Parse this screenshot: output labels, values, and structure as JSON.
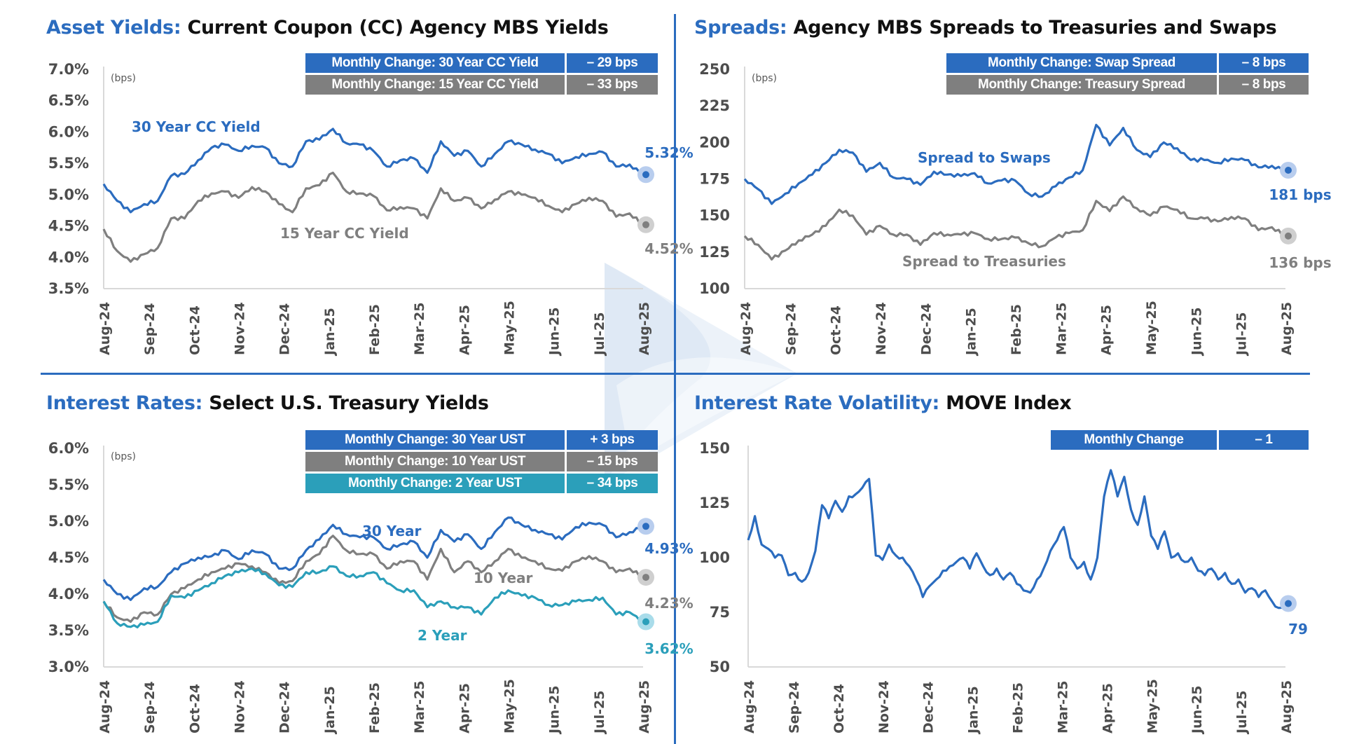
{
  "colors": {
    "accent_blue": "#2b6cbf",
    "gray": "#7f7f7f",
    "teal": "#2b9fba",
    "axis_text": "#4d4d4d",
    "axis_line": "#d9d9d9",
    "watermark": "#c9d9ef"
  },
  "panels": {
    "asset_yields": {
      "title_accent": "Asset Yields:",
      "title_rest": "Current Coupon (CC) Agency MBS Yields",
      "changes": [
        {
          "label": "Monthly Change: 30 Year CC Yield",
          "value": "– 29 bps",
          "color": "blue"
        },
        {
          "label": "Monthly Change: 15 Year CC Yield",
          "value": "– 33 bps",
          "color": "gray"
        }
      ]
    },
    "spreads": {
      "title_accent": "Spreads:",
      "title_rest": "Agency MBS Spreads to Treasuries and Swaps",
      "changes": [
        {
          "label": "Monthly Change: Swap Spread",
          "value": "– 8 bps",
          "color": "blue"
        },
        {
          "label": "Monthly Change: Treasury Spread",
          "value": "– 8 bps",
          "color": "gray"
        }
      ]
    },
    "interest_rates": {
      "title_accent": "Interest Rates:",
      "title_rest": "Select U.S. Treasury Yields",
      "changes": [
        {
          "label": "Monthly Change: 30 Year UST",
          "value": "+ 3 bps",
          "color": "blue"
        },
        {
          "label": "Monthly Change: 10 Year UST",
          "value": "– 15 bps",
          "color": "gray"
        },
        {
          "label": "Monthly Change: 2 Year UST",
          "value": "– 34 bps",
          "color": "teal"
        }
      ]
    },
    "volatility": {
      "title_accent": "Interest Rate Volatility:",
      "title_rest": "MOVE Index",
      "changes": [
        {
          "label": "Monthly Change",
          "value": "– 1",
          "color": "blue"
        }
      ]
    }
  },
  "chart_data": [
    {
      "id": "asset_yields",
      "type": "line",
      "title": "Asset Yields: Current Coupon (CC) Agency MBS Yields",
      "unit_label": "(bps)",
      "ylim": [
        3.5,
        7.0
      ],
      "yticks": [
        3.5,
        4.0,
        4.5,
        5.0,
        5.5,
        6.0,
        6.5,
        7.0
      ],
      "ytick_format": "pct1",
      "x_ticks": [
        "Aug-24",
        "Sep-24",
        "Oct-24",
        "Nov-24",
        "Dec-24",
        "Jan-25",
        "Feb-25",
        "Mar-25",
        "Apr-25",
        "May-25",
        "Jun-25",
        "Jul-25",
        "Aug-25"
      ],
      "x": [
        0,
        0.3,
        0.6,
        0.9,
        1.2,
        1.5,
        1.8,
        2.1,
        2.4,
        2.7,
        3.0,
        3.3,
        3.6,
        3.9,
        4.2,
        4.5,
        4.8,
        5.1,
        5.4,
        5.7,
        6.0,
        6.3,
        6.6,
        6.9,
        7.2,
        7.5,
        7.8,
        8.1,
        8.4,
        8.7,
        9.0,
        9.3,
        9.6,
        9.9,
        10.2,
        10.5,
        10.8,
        11.1,
        11.4,
        11.7,
        12.0
      ],
      "series": [
        {
          "name": "30 Year CC Yield",
          "color": "blue",
          "end_label": "5.32%",
          "values": [
            5.17,
            4.9,
            4.72,
            4.85,
            4.9,
            5.3,
            5.33,
            5.55,
            5.75,
            5.8,
            5.7,
            5.78,
            5.75,
            5.5,
            5.45,
            5.85,
            5.88,
            6.05,
            5.82,
            5.8,
            5.7,
            5.45,
            5.55,
            5.58,
            5.35,
            5.85,
            5.62,
            5.7,
            5.45,
            5.65,
            5.85,
            5.8,
            5.72,
            5.65,
            5.5,
            5.6,
            5.65,
            5.68,
            5.45,
            5.48,
            5.32
          ]
        },
        {
          "name": "15 Year CC Yield",
          "color": "gray",
          "end_label": "4.52%",
          "values": [
            4.45,
            4.1,
            3.93,
            4.05,
            4.15,
            4.62,
            4.62,
            4.9,
            5.02,
            5.05,
            4.95,
            5.12,
            5.05,
            4.85,
            4.72,
            5.1,
            5.15,
            5.35,
            5.05,
            5.02,
            4.98,
            4.75,
            4.8,
            4.78,
            4.62,
            5.1,
            4.9,
            4.95,
            4.78,
            4.92,
            5.05,
            5.0,
            4.95,
            4.82,
            4.72,
            4.85,
            4.95,
            4.9,
            4.65,
            4.7,
            4.52
          ]
        }
      ]
    },
    {
      "id": "spreads",
      "type": "line",
      "title": "Spreads: Agency MBS Spreads to Treasuries and Swaps",
      "unit_label": "(bps)",
      "ylim": [
        100,
        250
      ],
      "yticks": [
        100,
        125,
        150,
        175,
        200,
        225,
        250
      ],
      "ytick_format": "int",
      "x_ticks": [
        "Aug-24",
        "Sep-24",
        "Oct-24",
        "Nov-24",
        "Dec-24",
        "Jan-25",
        "Feb-25",
        "Mar-25",
        "Apr-25",
        "May-25",
        "Jun-25",
        "Jul-25",
        "Aug-25"
      ],
      "x": [
        0,
        0.3,
        0.6,
        0.9,
        1.2,
        1.5,
        1.8,
        2.1,
        2.4,
        2.7,
        3.0,
        3.3,
        3.6,
        3.9,
        4.2,
        4.5,
        4.8,
        5.1,
        5.4,
        5.7,
        6.0,
        6.3,
        6.6,
        6.9,
        7.2,
        7.5,
        7.8,
        8.1,
        8.4,
        8.7,
        9.0,
        9.3,
        9.6,
        9.9,
        10.2,
        10.5,
        10.8,
        11.1,
        11.4,
        11.7,
        12.0
      ],
      "series": [
        {
          "name": "Spread to Swaps",
          "color": "blue",
          "end_label": "181 bps",
          "values": [
            175,
            168,
            158,
            165,
            172,
            178,
            186,
            195,
            193,
            180,
            186,
            176,
            175,
            171,
            180,
            178,
            177,
            179,
            172,
            174,
            174,
            165,
            163,
            170,
            176,
            181,
            212,
            198,
            210,
            195,
            190,
            200,
            196,
            188,
            188,
            186,
            189,
            188,
            183,
            184,
            181
          ]
        },
        {
          "name": "Spread to Treasuries",
          "color": "gray",
          "end_label": "136 bps",
          "values": [
            136,
            130,
            120,
            126,
            133,
            137,
            143,
            154,
            150,
            137,
            143,
            137,
            137,
            130,
            138,
            137,
            137,
            138,
            134,
            134,
            135,
            131,
            129,
            135,
            138,
            140,
            160,
            153,
            163,
            155,
            150,
            156,
            154,
            148,
            148,
            146,
            149,
            148,
            140,
            142,
            136
          ]
        }
      ]
    },
    {
      "id": "interest_rates",
      "type": "line",
      "title": "Interest Rates: Select U.S. Treasury Yields",
      "unit_label": "(bps)",
      "ylim": [
        3.0,
        6.0
      ],
      "yticks": [
        3.0,
        3.5,
        4.0,
        4.5,
        5.0,
        5.5,
        6.0
      ],
      "ytick_format": "pct1",
      "x_ticks": [
        "Aug-24",
        "Sep-24",
        "Oct-24",
        "Nov-24",
        "Dec-24",
        "Jan-25",
        "Feb-25",
        "Mar-25",
        "Apr-25",
        "May-25",
        "Jun-25",
        "Jul-25",
        "Aug-25"
      ],
      "x": [
        0,
        0.3,
        0.6,
        0.9,
        1.2,
        1.5,
        1.8,
        2.1,
        2.4,
        2.7,
        3.0,
        3.3,
        3.6,
        3.9,
        4.2,
        4.5,
        4.8,
        5.1,
        5.4,
        5.7,
        6.0,
        6.3,
        6.6,
        6.9,
        7.2,
        7.5,
        7.8,
        8.1,
        8.4,
        8.7,
        9.0,
        9.3,
        9.6,
        9.9,
        10.2,
        10.5,
        10.8,
        11.1,
        11.4,
        11.7,
        12.0
      ],
      "series": [
        {
          "name": "30 Year",
          "color": "blue",
          "end_label": "4.93%",
          "values": [
            4.2,
            4.0,
            3.92,
            4.08,
            4.1,
            4.3,
            4.42,
            4.5,
            4.52,
            4.6,
            4.48,
            4.6,
            4.55,
            4.35,
            4.35,
            4.6,
            4.75,
            4.95,
            4.82,
            4.78,
            4.78,
            4.62,
            4.68,
            4.72,
            4.5,
            4.88,
            4.72,
            4.82,
            4.62,
            4.85,
            5.05,
            4.95,
            4.88,
            4.82,
            4.75,
            4.92,
            4.98,
            4.95,
            4.78,
            4.85,
            4.93
          ]
        },
        {
          "name": "10 Year",
          "color": "gray",
          "end_label": "4.23%",
          "values": [
            3.9,
            3.68,
            3.62,
            3.75,
            3.72,
            4.0,
            4.08,
            4.2,
            4.3,
            4.35,
            4.42,
            4.38,
            4.3,
            4.15,
            4.18,
            4.45,
            4.55,
            4.8,
            4.6,
            4.55,
            4.55,
            4.35,
            4.45,
            4.45,
            4.2,
            4.62,
            4.3,
            4.45,
            4.3,
            4.45,
            4.62,
            4.5,
            4.45,
            4.35,
            4.32,
            4.45,
            4.52,
            4.45,
            4.3,
            4.35,
            4.23
          ]
        },
        {
          "name": "2 Year",
          "color": "teal",
          "end_label": "3.62%",
          "values": [
            3.9,
            3.6,
            3.55,
            3.58,
            3.62,
            3.98,
            3.95,
            4.05,
            4.15,
            4.25,
            4.3,
            4.35,
            4.28,
            4.12,
            4.1,
            4.3,
            4.3,
            4.38,
            4.25,
            4.25,
            4.3,
            4.15,
            4.05,
            4.05,
            3.82,
            3.9,
            3.82,
            3.82,
            3.72,
            3.95,
            4.05,
            3.98,
            3.95,
            3.85,
            3.85,
            3.9,
            3.92,
            3.95,
            3.72,
            3.75,
            3.62
          ]
        }
      ]
    },
    {
      "id": "volatility",
      "type": "line",
      "title": "Interest Rate Volatility: MOVE Index",
      "unit_label": "",
      "ylim": [
        50,
        150
      ],
      "yticks": [
        50,
        75,
        100,
        125,
        150
      ],
      "ytick_format": "int",
      "x_ticks": [
        "Aug-24",
        "Sep-24",
        "Oct-24",
        "Nov-24",
        "Dec-24",
        "Jan-25",
        "Feb-25",
        "Mar-25",
        "Apr-25",
        "May-25",
        "Jun-25",
        "Jul-25",
        "Aug-25"
      ],
      "x": [
        0,
        0.15,
        0.3,
        0.45,
        0.6,
        0.75,
        0.9,
        1.05,
        1.2,
        1.35,
        1.5,
        1.65,
        1.8,
        1.95,
        2.1,
        2.25,
        2.4,
        2.55,
        2.7,
        2.85,
        3.0,
        3.15,
        3.3,
        3.45,
        3.6,
        3.75,
        3.9,
        4.05,
        4.2,
        4.35,
        4.5,
        4.65,
        4.8,
        4.95,
        5.1,
        5.25,
        5.4,
        5.55,
        5.7,
        5.85,
        6.0,
        6.15,
        6.3,
        6.45,
        6.6,
        6.75,
        6.9,
        7.05,
        7.2,
        7.35,
        7.5,
        7.65,
        7.8,
        7.95,
        8.1,
        8.25,
        8.4,
        8.55,
        8.7,
        8.85,
        9.0,
        9.15,
        9.3,
        9.45,
        9.6,
        9.75,
        9.9,
        10.05,
        10.2,
        10.35,
        10.5,
        10.65,
        10.8,
        10.95,
        11.1,
        11.25,
        11.4,
        11.55,
        11.7,
        11.85,
        12.0
      ],
      "series": [
        {
          "name": "MOVE Index",
          "color": "blue",
          "end_label": "79",
          "values": [
            108,
            119,
            106,
            104,
            100,
            101,
            92,
            93,
            89,
            93,
            103,
            124,
            118,
            126,
            121,
            128,
            129,
            132,
            136,
            101,
            99,
            106,
            101,
            100,
            96,
            90,
            82,
            87,
            90,
            94,
            96,
            98,
            100,
            95,
            102,
            96,
            92,
            95,
            90,
            93,
            88,
            85,
            84,
            90,
            95,
            103,
            108,
            114,
            100,
            95,
            98,
            90,
            100,
            128,
            140,
            128,
            137,
            122,
            115,
            128,
            110,
            104,
            112,
            100,
            102,
            98,
            100,
            94,
            92,
            95,
            90,
            93,
            88,
            90,
            84,
            86,
            82,
            85,
            80,
            77,
            79
          ]
        }
      ]
    }
  ]
}
